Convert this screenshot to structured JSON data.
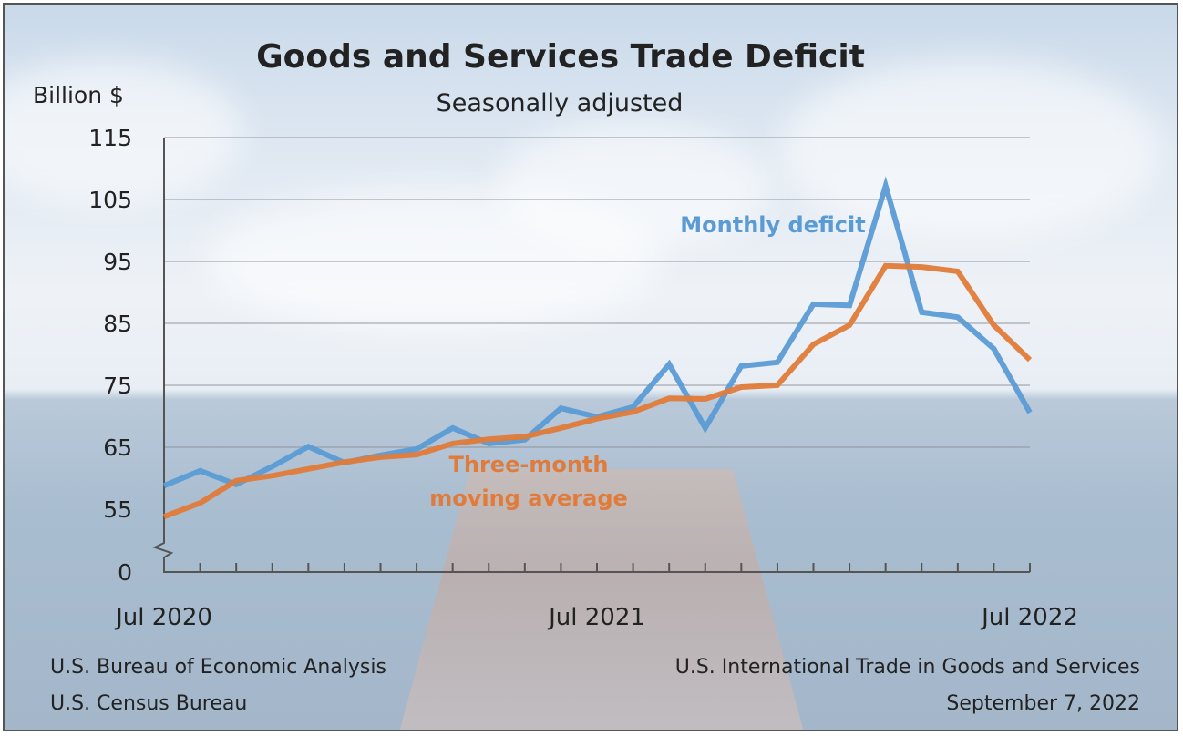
{
  "chart_data": {
    "type": "line",
    "title": "Goods and Services Trade Deficit",
    "subtitle": "Seasonally adjusted",
    "ylabel": "Billion $",
    "y_ticks": [
      0,
      55,
      65,
      75,
      85,
      95,
      105,
      115
    ],
    "ylim": [
      55,
      115
    ],
    "y_axis_break": true,
    "x_tick_labels": [
      "Jul 2020",
      "Jul 2021",
      "Jul 2022"
    ],
    "x": [
      "2020-07",
      "2020-08",
      "2020-09",
      "2020-10",
      "2020-11",
      "2020-12",
      "2021-01",
      "2021-02",
      "2021-03",
      "2021-04",
      "2021-05",
      "2021-06",
      "2021-07",
      "2021-08",
      "2021-09",
      "2021-10",
      "2021-11",
      "2021-12",
      "2022-01",
      "2022-02",
      "2022-03",
      "2022-04",
      "2022-05",
      "2022-06",
      "2022-07"
    ],
    "grid": true,
    "series": [
      {
        "name": "Monthly deficit",
        "color": "#5b9bd5",
        "values": [
          58.8,
          61.2,
          59.0,
          61.9,
          65.1,
          62.5,
          63.7,
          64.7,
          68.1,
          65.6,
          66.2,
          71.3,
          69.9,
          71.5,
          78.4,
          68.1,
          78.1,
          78.7,
          88.1,
          87.9,
          107.2,
          86.8,
          86.0,
          80.9,
          70.6
        ]
      },
      {
        "name": "Three-month moving average",
        "label_lines": [
          "Three-month",
          "moving average"
        ],
        "color": "#e07b39",
        "values": [
          53.8,
          56.0,
          59.6,
          60.4,
          61.5,
          62.6,
          63.4,
          63.8,
          65.6,
          66.3,
          66.7,
          68.1,
          69.6,
          70.7,
          72.9,
          72.8,
          74.7,
          75.0,
          81.6,
          84.7,
          94.3,
          94.1,
          93.4,
          84.7,
          79.1
        ]
      }
    ]
  },
  "footer": {
    "left_line1": "U.S. Bureau of Economic Analysis",
    "left_line2": "U.S. Census Bureau",
    "right_line1": "U.S. International Trade in Goods and Services",
    "right_line2": "September 7, 2022"
  }
}
